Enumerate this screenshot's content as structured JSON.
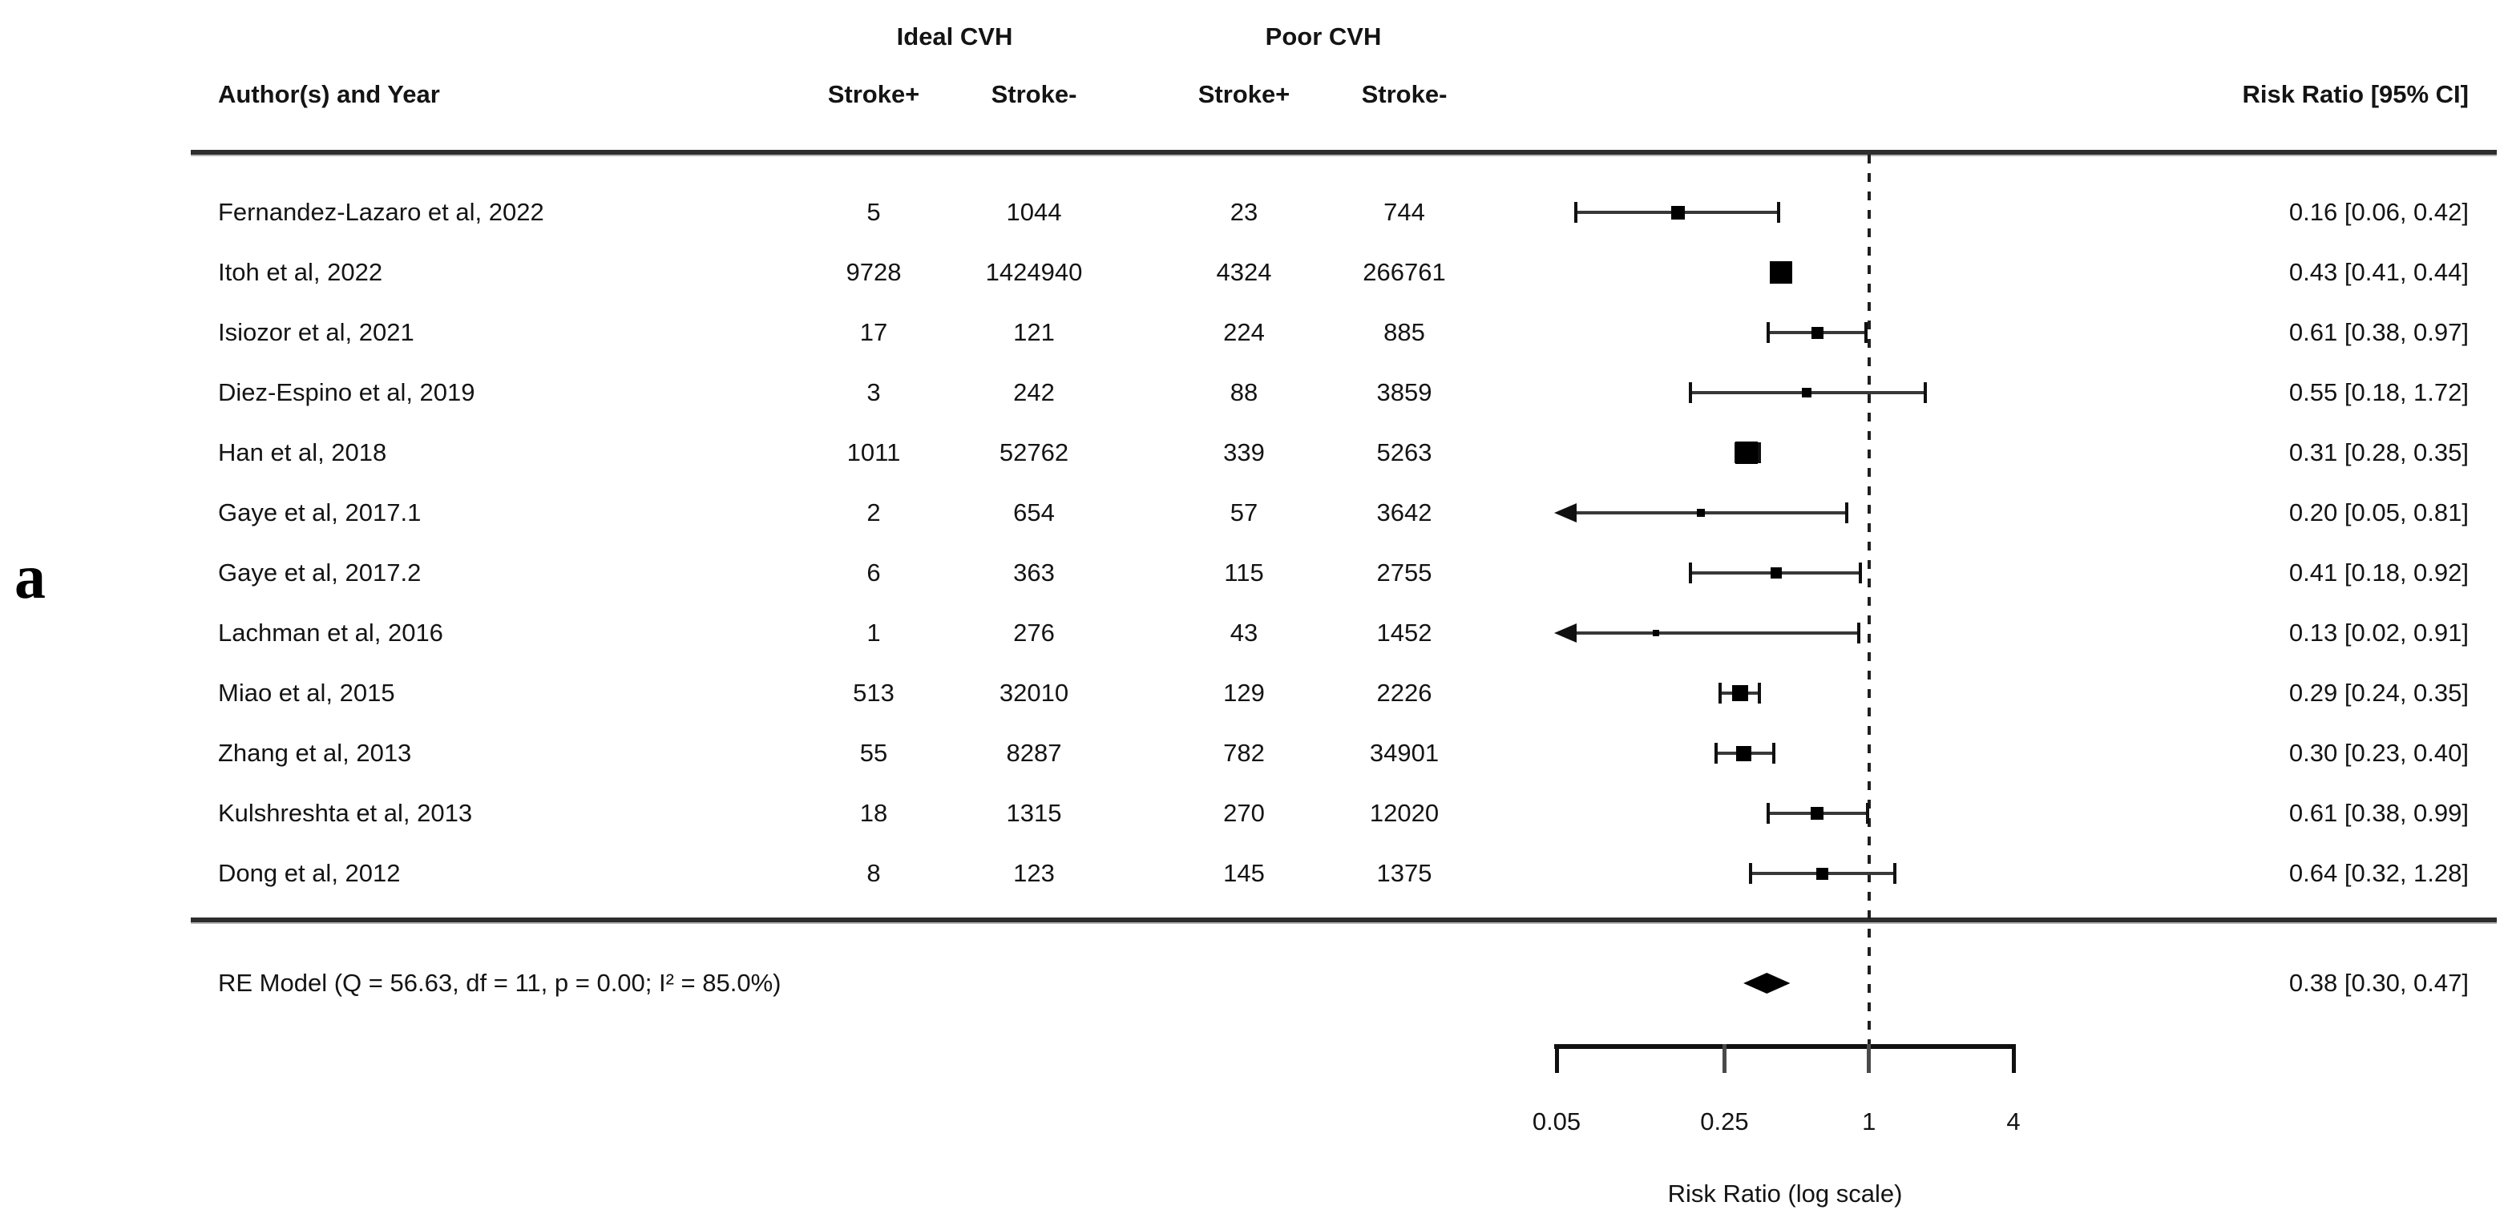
{
  "panel_label": "a",
  "header": {
    "group1_label": "Ideal CVH",
    "group2_label": "Poor CVH",
    "author_col": "Author(s) and Year",
    "sub_cols": [
      "Stroke+",
      "Stroke-",
      "Stroke+",
      "Stroke-"
    ],
    "rr_col": "Risk Ratio [95% CI]"
  },
  "chart_data": {
    "type": "forest",
    "x_axis": {
      "label": "Risk Ratio (log scale)",
      "scale": "log",
      "range": [
        0.05,
        4
      ],
      "ticks": [
        0.05,
        0.25,
        1,
        4
      ],
      "tick_labels": [
        "0.05",
        "0.25",
        "1",
        "4"
      ],
      "reference_line": 1
    },
    "columns": {
      "group1": "Ideal CVH",
      "group2": "Poor CVH",
      "group1_cols": [
        "Stroke+",
        "Stroke-"
      ],
      "group2_cols": [
        "Stroke+",
        "Stroke-"
      ]
    },
    "studies": [
      {
        "author": "Fernandez-Lazaro et al, 2022",
        "ideal_stroke_pos": "5",
        "ideal_stroke_neg": "1044",
        "poor_stroke_pos": "23",
        "poor_stroke_neg": "744",
        "rr": 0.16,
        "ci_low": 0.06,
        "ci_high": 0.42,
        "rr_text": "0.16 [0.06, 0.42]",
        "square_size": 17,
        "arrow_left": false
      },
      {
        "author": "Itoh et al, 2022",
        "ideal_stroke_pos": "9728",
        "ideal_stroke_neg": "1424940",
        "poor_stroke_pos": "4324",
        "poor_stroke_neg": "266761",
        "rr": 0.43,
        "ci_low": 0.41,
        "ci_high": 0.44,
        "rr_text": "0.43 [0.41, 0.44]",
        "square_size": 28,
        "arrow_left": false
      },
      {
        "author": "Isiozor et al, 2021",
        "ideal_stroke_pos": "17",
        "ideal_stroke_neg": "121",
        "poor_stroke_pos": "224",
        "poor_stroke_neg": "885",
        "rr": 0.61,
        "ci_low": 0.38,
        "ci_high": 0.97,
        "rr_text": "0.61 [0.38, 0.97]",
        "square_size": 15,
        "arrow_left": false
      },
      {
        "author": "Diez-Espino et al, 2019",
        "ideal_stroke_pos": "3",
        "ideal_stroke_neg": "242",
        "poor_stroke_pos": "88",
        "poor_stroke_neg": "3859",
        "rr": 0.55,
        "ci_low": 0.18,
        "ci_high": 1.72,
        "rr_text": "0.55 [0.18, 1.72]",
        "square_size": 12,
        "arrow_left": false
      },
      {
        "author": "Han et al, 2018",
        "ideal_stroke_pos": "1011",
        "ideal_stroke_neg": "52762",
        "poor_stroke_pos": "339",
        "poor_stroke_neg": "5263",
        "rr": 0.31,
        "ci_low": 0.28,
        "ci_high": 0.35,
        "rr_text": "0.31 [0.28, 0.35]",
        "square_size": 28,
        "arrow_left": false
      },
      {
        "author": "Gaye et al, 2017.1",
        "ideal_stroke_pos": "2",
        "ideal_stroke_neg": "654",
        "poor_stroke_pos": "57",
        "poor_stroke_neg": "3642",
        "rr": 0.2,
        "ci_low": 0.05,
        "ci_high": 0.81,
        "rr_text": "0.20 [0.05, 0.81]",
        "square_size": 10,
        "arrow_left": true
      },
      {
        "author": "Gaye et al, 2017.2",
        "ideal_stroke_pos": "6",
        "ideal_stroke_neg": "363",
        "poor_stroke_pos": "115",
        "poor_stroke_neg": "2755",
        "rr": 0.41,
        "ci_low": 0.18,
        "ci_high": 0.92,
        "rr_text": "0.41 [0.18, 0.92]",
        "square_size": 14,
        "arrow_left": false
      },
      {
        "author": "Lachman et al, 2016",
        "ideal_stroke_pos": "1",
        "ideal_stroke_neg": "276",
        "poor_stroke_pos": "43",
        "poor_stroke_neg": "1452",
        "rr": 0.13,
        "ci_low": 0.02,
        "ci_high": 0.91,
        "rr_text": "0.13 [0.02, 0.91]",
        "square_size": 8,
        "arrow_left": true
      },
      {
        "author": "Miao et al, 2015",
        "ideal_stroke_pos": "513",
        "ideal_stroke_neg": "32010",
        "poor_stroke_pos": "129",
        "poor_stroke_neg": "2226",
        "rr": 0.29,
        "ci_low": 0.24,
        "ci_high": 0.35,
        "rr_text": "0.29 [0.24, 0.35]",
        "square_size": 20,
        "arrow_left": false
      },
      {
        "author": "Zhang et al, 2013",
        "ideal_stroke_pos": "55",
        "ideal_stroke_neg": "8287",
        "poor_stroke_pos": "782",
        "poor_stroke_neg": "34901",
        "rr": 0.3,
        "ci_low": 0.23,
        "ci_high": 0.4,
        "rr_text": "0.30 [0.23, 0.40]",
        "square_size": 19,
        "arrow_left": false
      },
      {
        "author": "Kulshreshta et al, 2013",
        "ideal_stroke_pos": "18",
        "ideal_stroke_neg": "1315",
        "poor_stroke_pos": "270",
        "poor_stroke_neg": "12020",
        "rr": 0.61,
        "ci_low": 0.38,
        "ci_high": 0.99,
        "rr_text": "0.61 [0.38, 0.99]",
        "square_size": 16,
        "arrow_left": false
      },
      {
        "author": "Dong et al, 2012",
        "ideal_stroke_pos": "8",
        "ideal_stroke_neg": "123",
        "poor_stroke_pos": "145",
        "poor_stroke_neg": "1375",
        "rr": 0.64,
        "ci_low": 0.32,
        "ci_high": 1.28,
        "rr_text": "0.64 [0.32, 1.28]",
        "square_size": 15,
        "arrow_left": false
      }
    ],
    "summary": {
      "label": "RE Model (Q = 56.63, df = 11, p = 0.00; I² = 85.0%)",
      "rr": 0.38,
      "ci_low": 0.3,
      "ci_high": 0.47,
      "rr_text": "0.38 [0.30, 0.47]"
    }
  }
}
